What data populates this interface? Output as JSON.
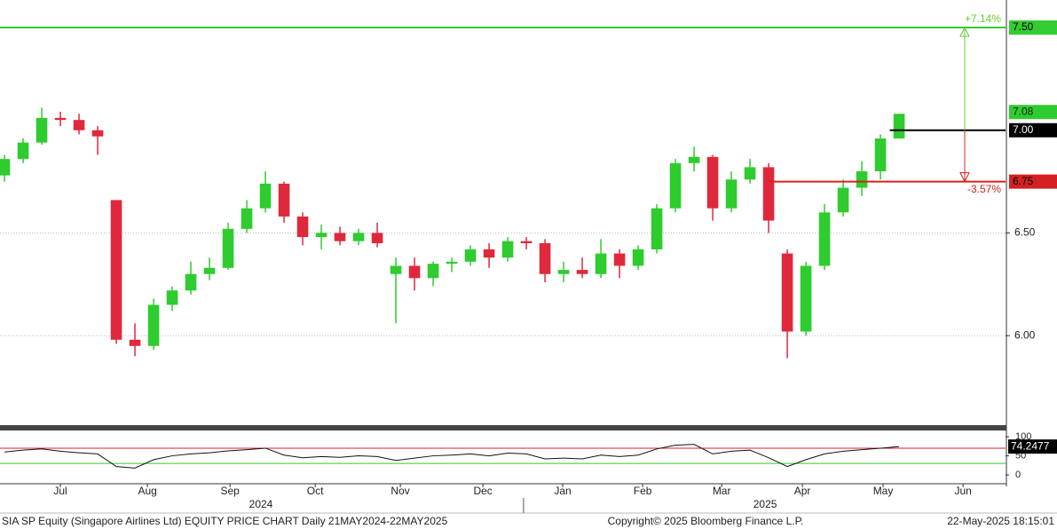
{
  "chart_data": {
    "type": "candlestick",
    "categories": [
      null,
      null,
      null,
      null,
      null,
      null,
      null,
      null,
      null,
      null,
      null,
      null,
      null,
      null,
      null,
      null,
      null,
      null,
      null,
      null,
      null,
      null,
      null,
      null,
      null,
      null,
      null,
      null,
      null,
      null,
      null,
      null,
      null,
      null,
      null,
      null,
      null,
      null,
      null,
      null,
      null,
      null,
      null,
      null,
      null,
      null,
      null,
      null,
      null
    ],
    "open": [
      6.78,
      6.86,
      6.94,
      7.06,
      7.05,
      7.0,
      6.66,
      5.98,
      5.95,
      6.15,
      6.22,
      6.3,
      6.33,
      6.52,
      6.62,
      6.74,
      6.58,
      6.48,
      6.5,
      6.46,
      6.5,
      6.3,
      6.34,
      6.28,
      6.35,
      6.36,
      6.42,
      6.38,
      6.46,
      6.45,
      6.3,
      6.32,
      6.3,
      6.4,
      6.34,
      6.42,
      6.62,
      6.84,
      6.87,
      6.62,
      6.76,
      6.82,
      6.4,
      6.02,
      6.34,
      6.6,
      6.72,
      6.8,
      6.96
    ],
    "high": [
      6.88,
      6.96,
      7.11,
      7.09,
      7.08,
      7.02,
      6.66,
      6.06,
      6.18,
      6.24,
      6.36,
      6.38,
      6.55,
      6.66,
      6.8,
      6.75,
      6.6,
      6.54,
      6.53,
      6.52,
      6.55,
      6.38,
      6.38,
      6.36,
      6.38,
      6.44,
      6.45,
      6.48,
      6.48,
      6.47,
      6.36,
      6.38,
      6.47,
      6.42,
      6.44,
      6.64,
      6.86,
      6.92,
      6.88,
      6.8,
      6.86,
      6.84,
      6.42,
      6.36,
      6.64,
      6.76,
      6.85,
      6.98,
      7.08
    ],
    "low": [
      6.75,
      6.84,
      6.93,
      7.02,
      6.98,
      6.88,
      5.96,
      5.9,
      5.93,
      6.12,
      6.2,
      6.27,
      6.32,
      6.5,
      6.6,
      6.55,
      6.44,
      6.42,
      6.44,
      6.44,
      6.43,
      6.06,
      6.22,
      6.24,
      6.31,
      6.34,
      6.33,
      6.36,
      6.42,
      6.26,
      6.26,
      6.28,
      6.28,
      6.28,
      6.32,
      6.4,
      6.6,
      6.8,
      6.56,
      6.6,
      6.74,
      6.5,
      5.89,
      6.0,
      6.32,
      6.58,
      6.68,
      6.76,
      6.96
    ],
    "close": [
      6.86,
      6.94,
      7.06,
      7.05,
      7.0,
      6.97,
      5.98,
      5.95,
      6.15,
      6.22,
      6.3,
      6.33,
      6.52,
      6.62,
      6.74,
      6.58,
      6.48,
      6.5,
      6.46,
      6.5,
      6.45,
      6.34,
      6.28,
      6.35,
      6.36,
      6.42,
      6.38,
      6.46,
      6.45,
      6.3,
      6.32,
      6.3,
      6.4,
      6.34,
      6.42,
      6.62,
      6.84,
      6.87,
      6.62,
      6.76,
      6.82,
      6.56,
      6.02,
      6.34,
      6.6,
      6.72,
      6.8,
      6.96,
      7.08
    ],
    "up_color": "#2ecc2e",
    "down_color": "#e0283c",
    "xlim": [
      -0.24,
      53.71
    ],
    "xticks": [
      {
        "value": 3.0,
        "label": "Jul"
      },
      {
        "value": 7.67,
        "label": "Aug"
      },
      {
        "value": 12.1,
        "label": "Sep"
      },
      {
        "value": 16.67,
        "label": "Oct"
      },
      {
        "value": 21.24,
        "label": "Nov"
      },
      {
        "value": 25.67,
        "label": "Dec"
      },
      {
        "value": 29.95,
        "label": "Jan"
      },
      {
        "value": 34.24,
        "label": "Feb"
      },
      {
        "value": 38.48,
        "label": "Mar"
      },
      {
        "value": 42.81,
        "label": "Apr"
      },
      {
        "value": 47.14,
        "label": "May"
      },
      {
        "value": 51.43,
        "label": "Jun"
      }
    ],
    "years": [
      {
        "value": 13.76,
        "label": "2024"
      },
      {
        "value": 40.81,
        "label": "2025"
      }
    ],
    "year_break": 27.85,
    "ylim": [
      5.56,
      7.634
    ],
    "yticks": [
      {
        "value": 6.0,
        "label": "6.00"
      },
      {
        "value": 6.5,
        "label": "6.50"
      }
    ],
    "grid": true,
    "levels": [
      {
        "value": 7.5,
        "label": "7.50",
        "color": "#33cc33",
        "from": -0.24
      },
      {
        "value": 7.0,
        "label": "7.00",
        "color": "#000000",
        "from": 47.5
      },
      {
        "value": 6.75,
        "label": "6.75",
        "color": "#d42020",
        "from": 41.0
      }
    ],
    "last_price": {
      "value": 7.08,
      "label": "7.08"
    },
    "annotations": [
      {
        "value": 7.14,
        "label": "+7.14%",
        "color": "#66cc33"
      },
      {
        "value": -3.57,
        "label": "-3.57%",
        "color": "#d42020"
      }
    ],
    "rsi": {
      "values": [
        60,
        65,
        68,
        62,
        58,
        55,
        22,
        18,
        40,
        50,
        55,
        58,
        63,
        66,
        70,
        52,
        45,
        48,
        46,
        50,
        48,
        38,
        44,
        50,
        52,
        55,
        50,
        57,
        55,
        42,
        44,
        42,
        52,
        48,
        52,
        68,
        78,
        80,
        55,
        62,
        65,
        45,
        22,
        40,
        55,
        62,
        66,
        70,
        74.2477
      ],
      "last_label": "74.2477",
      "ylim": [
        -23,
        114
      ],
      "yticks": [
        0,
        50,
        100
      ],
      "upper": 70,
      "lower": 30
    },
    "footer": {
      "left": "SIA SP Equity (Singapore Airlines Ltd) EQUITY PRICE CHART  Daily 21MAY2024-22MAY2025",
      "center": "Copyright© 2025 Bloomberg Finance L.P.",
      "right": "22-May-2025 18:15:01"
    }
  }
}
